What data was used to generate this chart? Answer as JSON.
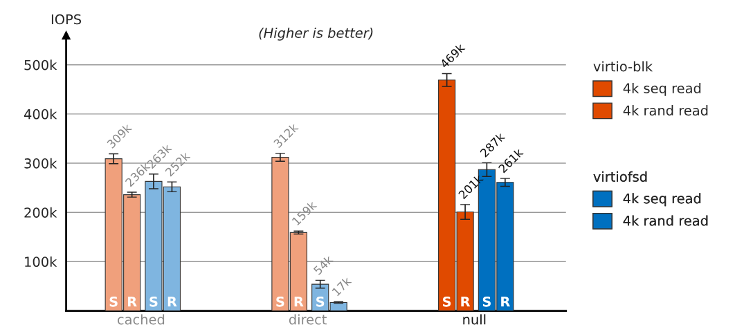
{
  "chart_data": {
    "type": "bar",
    "title": "(Higher is better)",
    "ylabel": "IOPS",
    "categories": [
      "cached",
      "direct",
      "null"
    ],
    "series": [
      {
        "name": "4k seq read",
        "color": "#e04a00",
        "colors": [
          "#f0a07c",
          "#f0a07c",
          "#e04a00"
        ],
        "values": [
          309000,
          312000,
          469000
        ],
        "errors": [
          10000,
          8000,
          13000
        ],
        "value_labels": [
          "309k",
          "312k",
          "469k"
        ]
      },
      {
        "name": "4k rand read",
        "color": "#e04a00",
        "colors": [
          "#f0a07c",
          "#f0a07c",
          "#e04a00"
        ],
        "values": [
          236000,
          159000,
          201000
        ],
        "errors": [
          5000,
          3000,
          15000
        ],
        "value_labels": [
          "236k",
          "159k",
          "201k"
        ]
      },
      {
        "name": "4k seq read",
        "color": "#0070c0",
        "colors": [
          "#7fb5e0",
          "#7fb5e0",
          "#0070c0"
        ],
        "values": [
          263000,
          54000,
          287000
        ],
        "errors": [
          15000,
          8000,
          14000
        ],
        "value_labels": [
          "263k",
          "54k",
          "287k"
        ]
      },
      {
        "name": "4k rand read",
        "color": "#0070c0",
        "colors": [
          "#7fb5e0",
          "#7fb5e0",
          "#0070c0"
        ],
        "values": [
          252000,
          17000,
          261000
        ],
        "errors": [
          10000,
          1500,
          8000
        ],
        "value_labels": [
          "252k",
          "17k",
          "261k"
        ]
      }
    ],
    "ylim": [
      0,
      560000
    ],
    "yticks": [
      {
        "value": 100000,
        "label": "100k"
      },
      {
        "value": 200000,
        "label": "200k"
      },
      {
        "value": 300000,
        "label": "300k"
      },
      {
        "value": 400000,
        "label": "400k"
      },
      {
        "value": 500000,
        "label": "500k"
      }
    ],
    "grid": "y",
    "legend": "right",
    "annotations": [
      "virtio-blk",
      "virtiofsd",
      "S",
      "R"
    ]
  }
}
